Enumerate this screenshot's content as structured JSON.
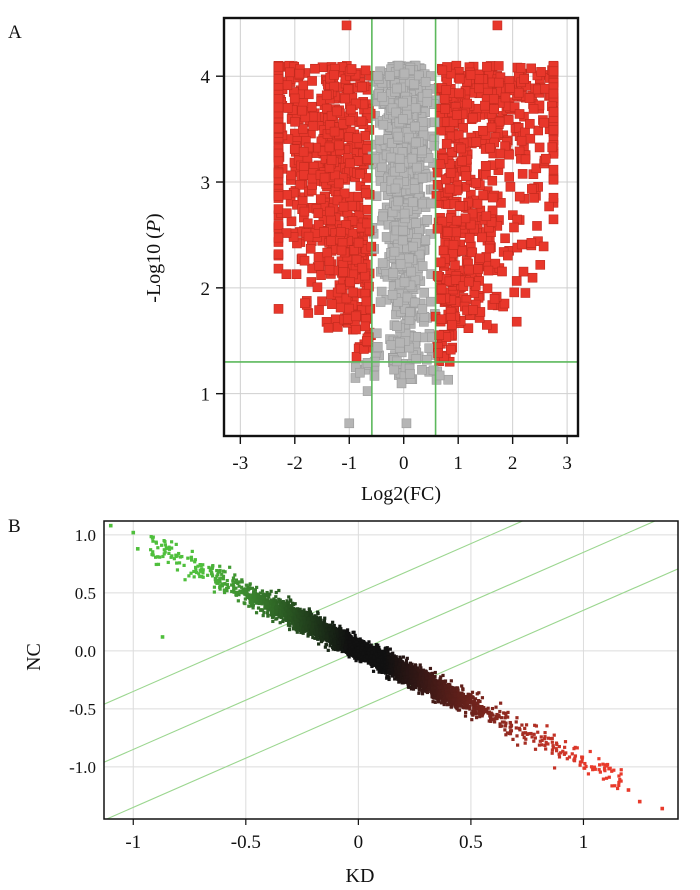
{
  "chart_data": [
    {
      "panel_label": "A",
      "type": "scatter",
      "subtype": "volcano",
      "xlabel": "Log2(FC)",
      "ylabel_prefix": "-Log10 (",
      "ylabel_italic": "P",
      "ylabel_suffix": ")",
      "xlim": [
        -3.3,
        3.2
      ],
      "ylim": [
        0.6,
        4.55
      ],
      "xticks": [
        -3,
        -2,
        -1,
        0,
        1,
        2,
        3
      ],
      "xtick_labels": [
        "-3",
        "-2",
        "-1",
        "0",
        "1",
        "2",
        "3"
      ],
      "yticks": [
        1,
        2,
        3,
        4
      ],
      "ytick_labels": [
        "1",
        "2",
        "3",
        "4"
      ],
      "grid": true,
      "fc_threshold_log2": 0.585,
      "p_threshold_neglog10": 1.3,
      "threshold_line_color": "#5cb85c",
      "significant_color": "#e8372b",
      "not_significant_color": "#b5b5b5",
      "point_count": 2200,
      "notes": "Points above -log10(P)=1.3 with |log2FC|>0.585 are red; the rest grey. Max -log10(P) ~4.5."
    },
    {
      "panel_label": "B",
      "type": "scatter",
      "xlabel": "KD",
      "ylabel": "NC",
      "xlim": [
        -1.13,
        1.42
      ],
      "ylim": [
        -1.45,
        1.12
      ],
      "xticks": [
        -1,
        -0.5,
        0,
        0.5,
        1
      ],
      "xtick_labels": [
        "-1",
        "-0.5",
        "0",
        "0.5",
        "1"
      ],
      "yticks": [
        1.0,
        0.5,
        0.0,
        -0.5,
        -1.0
      ],
      "ytick_labels": [
        "1.0",
        "0.5",
        "0.0",
        "-0.5",
        "-1.0"
      ],
      "grid": true,
      "diagonal_line_color": "#9bd68f",
      "diagonal_lines_intercepts": [
        0.5,
        0.0,
        -0.5
      ],
      "diagonal_lines_slope": 0.85,
      "trend_slope": -1.0,
      "point_color_low_x": "#4fbf3c",
      "point_color_mid": "#111111",
      "point_color_high_x": "#e83a2b",
      "point_count": 6500,
      "notes": "Points lie along NC ≈ -KD, colored green (left) through black to red (right)."
    }
  ]
}
